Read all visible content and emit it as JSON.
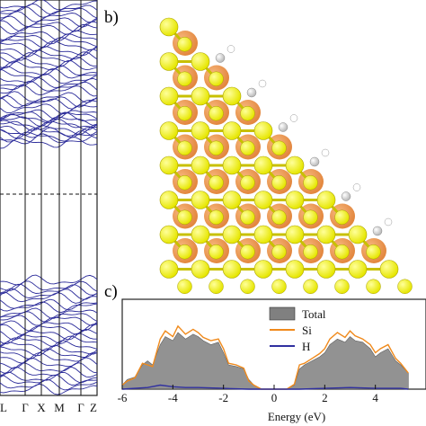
{
  "panel_labels": {
    "b": "b)",
    "c": "c)"
  },
  "band_structure": {
    "k_labels": [
      "L",
      "Γ",
      "X",
      "M",
      "Γ",
      "Z"
    ],
    "line_color": "#2b2b9a"
  },
  "atom_colors": {
    "Si": "#e6e600",
    "H": "#b8b8b8",
    "density": "#e07a2a"
  },
  "chart_data": {
    "type": "area",
    "xlabel": "Energy (eV)",
    "ylabel": "",
    "xlim": [
      -6,
      6
    ],
    "x_ticks": [
      "-6",
      "-4",
      "-2",
      "0",
      "2",
      "4"
    ],
    "legend_position": "top-right",
    "series": [
      {
        "name": "Total",
        "color": "#808080",
        "x": [
          -6,
          -5.8,
          -5.5,
          -5.2,
          -5,
          -4.8,
          -4.5,
          -4.3,
          -4,
          -3.8,
          -3.5,
          -3.2,
          -3,
          -2.8,
          -2.5,
          -2.2,
          -2,
          -1.8,
          -1.5,
          -1.2,
          -1,
          -0.8,
          -0.5,
          0,
          0.5,
          0.8,
          1,
          1.2,
          1.5,
          1.8,
          2,
          2.2,
          2.5,
          2.8,
          3,
          3.2,
          3.5,
          3.8,
          4,
          4.2,
          4.5,
          4.8,
          5,
          5.3
        ],
        "y": [
          0.05,
          0.12,
          0.15,
          0.3,
          0.35,
          0.3,
          0.55,
          0.65,
          0.6,
          0.7,
          0.62,
          0.68,
          0.65,
          0.6,
          0.55,
          0.58,
          0.45,
          0.3,
          0.28,
          0.25,
          0.12,
          0.05,
          0.0,
          0.0,
          0.0,
          0.05,
          0.25,
          0.3,
          0.35,
          0.4,
          0.45,
          0.55,
          0.62,
          0.58,
          0.65,
          0.6,
          0.58,
          0.5,
          0.4,
          0.45,
          0.5,
          0.35,
          0.3,
          0.2
        ]
      },
      {
        "name": "Si",
        "color": "#f08a1c",
        "x": [
          -6,
          -5.8,
          -5.5,
          -5.2,
          -5,
          -4.8,
          -4.5,
          -4.3,
          -4,
          -3.8,
          -3.5,
          -3.2,
          -3,
          -2.8,
          -2.5,
          -2.2,
          -2,
          -1.8,
          -1.5,
          -1.2,
          -1,
          -0.8,
          -0.5,
          0,
          0.5,
          0.8,
          1,
          1.2,
          1.5,
          1.8,
          2,
          2.2,
          2.5,
          2.8,
          3,
          3.2,
          3.5,
          3.8,
          4,
          4.2,
          4.5,
          4.8,
          5,
          5.3
        ],
        "y": [
          0.05,
          0.1,
          0.14,
          0.32,
          0.3,
          0.28,
          0.62,
          0.72,
          0.65,
          0.78,
          0.68,
          0.74,
          0.7,
          0.64,
          0.6,
          0.62,
          0.5,
          0.32,
          0.3,
          0.26,
          0.1,
          0.05,
          0.0,
          0.0,
          0.0,
          0.06,
          0.3,
          0.32,
          0.38,
          0.44,
          0.5,
          0.62,
          0.7,
          0.64,
          0.72,
          0.66,
          0.62,
          0.55,
          0.45,
          0.5,
          0.55,
          0.38,
          0.32,
          0.2
        ]
      },
      {
        "name": "H",
        "color": "#3030a0",
        "x": [
          -6,
          -5,
          -4.5,
          -4,
          -3.5,
          -3,
          -2,
          -1,
          0,
          1,
          2,
          3,
          4,
          5,
          5.3
        ],
        "y": [
          0.0,
          0.02,
          0.05,
          0.03,
          0.02,
          0.02,
          0.01,
          0.0,
          0.0,
          0.0,
          0.01,
          0.02,
          0.01,
          0.01,
          0.0
        ]
      }
    ]
  }
}
